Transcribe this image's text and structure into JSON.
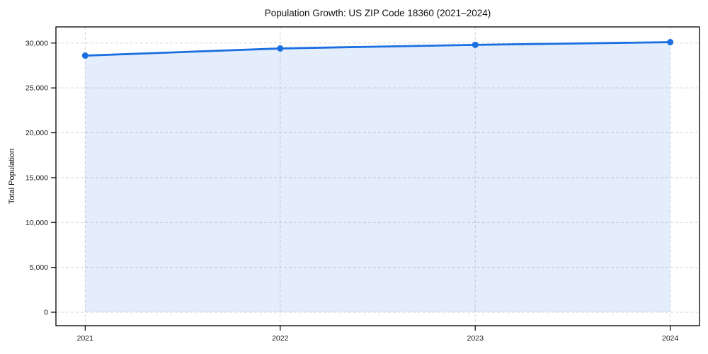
{
  "chart_data": {
    "type": "line",
    "title": "Population Growth: US ZIP Code 18360 (2021–2024)",
    "xlabel": "",
    "ylabel": "Total Population",
    "categories": [
      "2021",
      "2022",
      "2023",
      "2024"
    ],
    "series": [
      {
        "name": "Total Population",
        "values": [
          28600,
          29400,
          29800,
          30100
        ]
      }
    ],
    "yticks": [
      0,
      5000,
      10000,
      15000,
      20000,
      25000,
      30000
    ],
    "ytick_labels": [
      "0",
      "5,000",
      "10,000",
      "15,000",
      "20,000",
      "25,000",
      "30,000"
    ],
    "ylim": [
      -1500,
      31800
    ],
    "xlim": [
      -0.15,
      3.15
    ],
    "grid": true,
    "grid_style": "dashed",
    "area_fill": true,
    "markers": true,
    "legend": false
  },
  "colors": {
    "line": "#1b6fe0",
    "area": "rgba(27,111,224,0.12)",
    "grid": "#d5d5d5",
    "axis": "#000000",
    "tick_text": "#1a1a1a"
  }
}
